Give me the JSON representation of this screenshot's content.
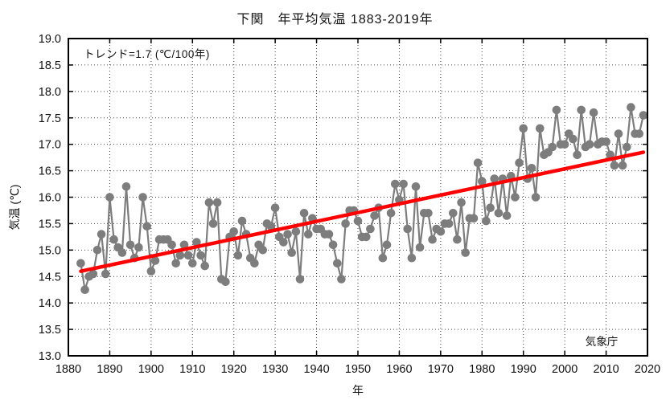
{
  "title": "下関　年平均気温 1883-2019年",
  "source_label": "気象庁",
  "chart_data": {
    "type": "line",
    "title": "下関 年平均気温 1883-2019年",
    "xlabel": "年",
    "ylabel": "気温 (℃)",
    "annotation": "トレンド=1.7 (℃/100年)",
    "xlim": [
      1880,
      2020
    ],
    "ylim": [
      13.0,
      19.0
    ],
    "grid": true,
    "legend": "none",
    "x_ticks": [
      1880,
      1890,
      1900,
      1910,
      1920,
      1930,
      1940,
      1950,
      1960,
      1970,
      1980,
      1990,
      2000,
      2010,
      2020
    ],
    "y_ticks": [
      "19.0",
      "18.5",
      "18.0",
      "17.5",
      "17.0",
      "16.5",
      "16.0",
      "15.5",
      "15.0",
      "14.5",
      "14.0",
      "13.5",
      "13.0"
    ],
    "x_start_year": 1883,
    "values": [
      14.75,
      14.25,
      14.5,
      14.55,
      15.0,
      15.3,
      14.55,
      16.0,
      15.2,
      15.05,
      14.95,
      16.2,
      15.1,
      14.85,
      15.05,
      16.0,
      15.45,
      14.6,
      14.8,
      15.2,
      15.2,
      15.2,
      15.1,
      14.75,
      14.9,
      15.1,
      14.9,
      14.75,
      15.15,
      14.9,
      14.7,
      15.9,
      15.5,
      15.9,
      14.45,
      14.4,
      15.25,
      15.35,
      14.9,
      15.55,
      15.3,
      14.85,
      14.75,
      15.1,
      15.0,
      15.5,
      15.45,
      15.8,
      15.25,
      15.15,
      15.3,
      14.95,
      15.35,
      14.45,
      15.7,
      15.3,
      15.6,
      15.4,
      15.4,
      15.3,
      15.3,
      15.1,
      14.75,
      14.45,
      15.5,
      15.75,
      15.75,
      15.55,
      15.25,
      15.25,
      15.4,
      15.65,
      15.8,
      14.85,
      15.1,
      15.7,
      16.25,
      15.95,
      16.25,
      15.4,
      14.85,
      16.2,
      15.05,
      15.7,
      15.7,
      15.2,
      15.4,
      15.35,
      15.5,
      15.5,
      15.7,
      15.2,
      15.9,
      14.95,
      15.6,
      15.6,
      16.65,
      16.3,
      15.55,
      15.8,
      16.35,
      15.7,
      16.35,
      15.65,
      16.4,
      16.0,
      16.65,
      17.3,
      16.35,
      16.55,
      16.0,
      17.3,
      16.8,
      16.85,
      16.95,
      17.65,
      17.0,
      17.0,
      17.2,
      17.1,
      16.8,
      17.65,
      16.95,
      17.0,
      17.6,
      17.0,
      17.05,
      17.05,
      16.8,
      16.6,
      17.2,
      16.6,
      16.95,
      17.7,
      17.2,
      17.2,
      17.55
    ],
    "trend": {
      "rate_label": "1.7",
      "start_year": 1883,
      "start_value": 14.6,
      "end_year": 2019,
      "end_value": 16.85
    },
    "colors": {
      "series": "#7d7d7d",
      "trend": "#ff0000",
      "grid": "#444444",
      "frame": "#000000"
    }
  }
}
